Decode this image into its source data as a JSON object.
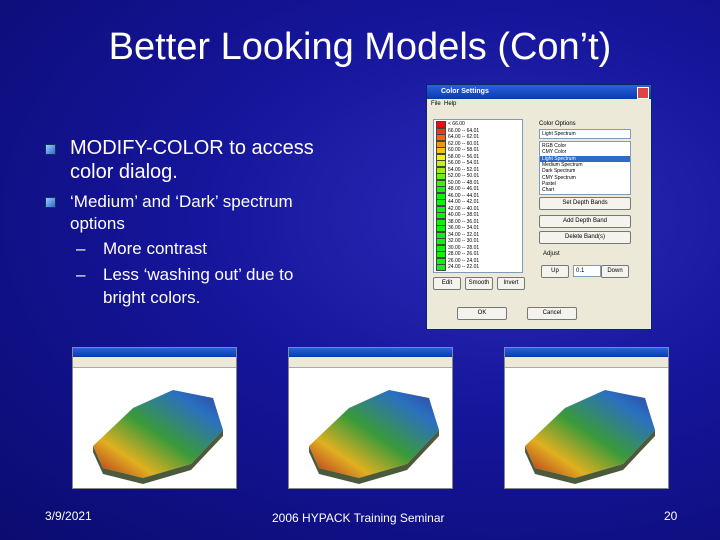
{
  "slide": {
    "title": "Better Looking Models (Con’t)",
    "bullets": [
      {
        "lines": [
          "MODIFY-COLOR to access",
          "color dialog."
        ]
      },
      {
        "lines": [
          "‘Medium’ and ‘Dark’ spectrum",
          "options"
        ]
      }
    ],
    "sub_bullets": [
      {
        "marker": "–",
        "lines": [
          "More contrast"
        ]
      },
      {
        "marker": "–",
        "lines": [
          "Less ‘washing out’ due to",
          "bright colors."
        ]
      }
    ],
    "footer": {
      "date": "3/9/2021",
      "center": "2006 HYPACK Training Seminar",
      "page": "20"
    }
  },
  "dialog": {
    "title": "Color Settings",
    "menu": [
      "File",
      "Help"
    ],
    "color_ranges": [
      "< 66.00",
      "66.00 -- 64.01",
      "64.00 -- 62.01",
      "62.00 -- 60.01",
      "60.00 -- 58.01",
      "58.00 -- 56.01",
      "56.00 -- 54.01",
      "54.00 -- 52.01",
      "52.00 -- 50.01",
      "50.00 -- 48.01",
      "48.00 -- 46.01",
      "46.00 -- 44.01",
      "44.00 -- 42.01",
      "42.00 -- 40.01",
      "40.00 -- 38.01",
      "38.00 -- 36.01",
      "36.00 -- 34.01",
      "34.00 -- 32.01",
      "32.00 -- 30.01",
      "30.00 -- 28.01",
      "28.00 -- 26.01",
      "26.00 -- 24.01",
      "24.00 -- 22.01"
    ],
    "color_options_label": "Color Options",
    "selected_option": "Light Spectrum",
    "options": [
      "RGB Color",
      "CMY Color",
      "Light Spectrum",
      "Medium Spectrum",
      "Dark Spectrum",
      "CMY Spectrum",
      "Pastel",
      "Chart"
    ],
    "buttons": [
      "Set Depth Bands",
      "Add Depth Band",
      "Delete Band(s)"
    ],
    "adjust": {
      "label": "Adjust",
      "up": "Up",
      "step": "0.1",
      "down": "Down"
    },
    "bottom": [
      "Edit",
      "Smooth",
      "Invert",
      "OK",
      "Cancel"
    ]
  }
}
